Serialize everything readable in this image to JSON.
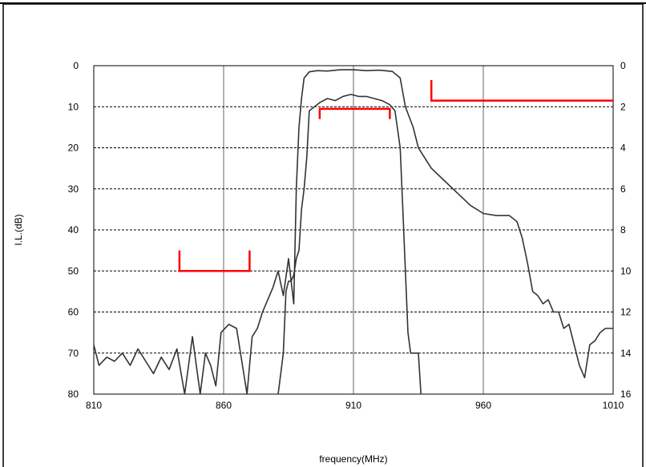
{
  "chart_data": {
    "type": "line",
    "xlabel": "frequency(MHz)",
    "ylabel": "I.L.(dB)",
    "xlim": [
      810,
      1010
    ],
    "ylim": [
      0,
      80
    ],
    "y2lim": [
      0,
      16
    ],
    "x_ticks": [
      810,
      860,
      910,
      960,
      1010
    ],
    "y_ticks": [
      0,
      10,
      20,
      30,
      40,
      50,
      60,
      70,
      80
    ],
    "y2_ticks": [
      0,
      2,
      4,
      6,
      8,
      10,
      12,
      14,
      16
    ],
    "vertical_grid": "solid",
    "horizontal_grid": "dashed",
    "series": [
      {
        "axis": "left",
        "color": "#333333",
        "x": [
          810,
          812,
          815,
          818,
          821,
          824,
          827,
          830,
          833,
          836,
          839,
          842,
          845,
          848,
          851,
          853,
          855,
          857,
          859,
          862,
          865,
          867,
          869,
          871,
          873,
          875,
          877,
          879,
          881,
          883,
          885,
          887,
          888,
          889,
          890,
          891,
          893,
          896,
          900,
          905,
          910,
          915,
          920,
          925,
          928,
          930,
          933,
          935,
          937,
          940,
          945,
          950,
          955,
          960,
          965,
          970,
          973,
          975,
          977,
          979,
          981,
          983,
          985,
          987,
          989,
          991,
          993,
          995,
          997,
          999,
          1001,
          1003,
          1005,
          1007,
          1010
        ],
        "y": [
          68,
          73,
          71,
          72,
          70,
          73,
          69,
          72,
          75,
          71,
          74,
          69,
          80,
          66,
          80,
          70,
          73,
          78,
          65,
          63,
          64,
          72,
          80,
          66,
          64,
          60,
          57,
          54,
          50,
          56,
          47,
          58,
          30,
          15,
          8,
          3,
          1.5,
          1.2,
          1.3,
          1.0,
          1.0,
          1.2,
          1.1,
          1.4,
          3,
          10,
          15,
          20,
          22,
          25,
          28,
          31,
          34,
          36,
          36.5,
          36.5,
          38,
          42,
          48,
          55,
          56,
          58,
          57,
          60,
          60,
          64,
          63,
          68,
          73,
          76,
          68,
          67,
          65,
          64,
          64
        ]
      },
      {
        "axis": "right",
        "color": "#333333",
        "x": [
          881,
          882,
          883,
          884,
          885,
          886,
          887,
          888,
          889,
          890,
          891,
          892,
          893,
          895,
          897,
          900,
          903,
          906,
          909,
          912,
          915,
          918,
          921,
          924,
          926,
          928,
          929,
          930,
          931,
          932,
          933,
          934,
          935,
          936
        ],
        "y": [
          16,
          15,
          14,
          11,
          10.5,
          10.5,
          10.2,
          9.4,
          9,
          7,
          6,
          4.5,
          2.2,
          2,
          1.8,
          1.6,
          1.7,
          1.5,
          1.4,
          1.5,
          1.5,
          1.6,
          1.7,
          1.9,
          2.2,
          4,
          7,
          10,
          13,
          14,
          14,
          14,
          14,
          16
        ]
      }
    ],
    "specification_masks": [
      {
        "axis": "left",
        "type": "bracket-up",
        "x": [
          843,
          870
        ],
        "y": 50,
        "tick_to": 45,
        "color": "#ff0000"
      },
      {
        "axis": "left",
        "type": "bracket-down",
        "x": [
          897,
          924
        ],
        "y": 10.5,
        "tick_to": 13,
        "color": "#ff0000"
      },
      {
        "axis": "left",
        "type": "step",
        "x": [
          940,
          1010
        ],
        "y": 8.5,
        "tick_to": 3.5,
        "color": "#ff0000"
      }
    ]
  }
}
